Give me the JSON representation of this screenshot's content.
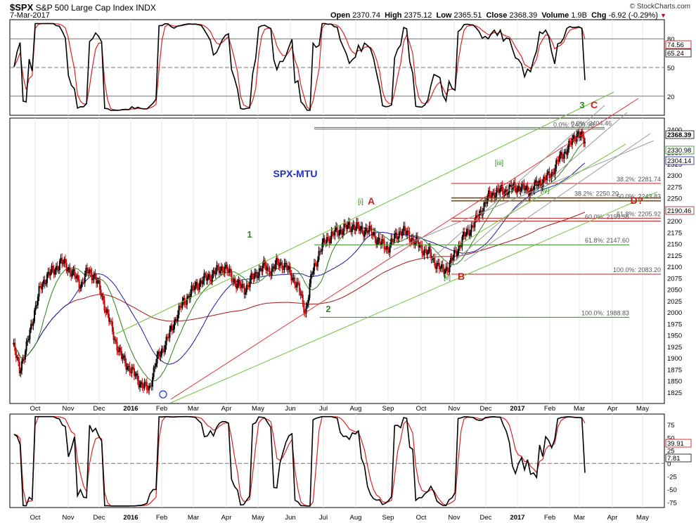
{
  "header": {
    "symbol": "$SPX",
    "name": "S&P 500 Large Cap Index",
    "exchange": "INDX",
    "date": "7-Mar-2017",
    "open_label": "Open",
    "open": "2370.74",
    "high_label": "High",
    "high": "2375.12",
    "low_label": "Low",
    "low": "2365.51",
    "close_label": "Close",
    "close": "2368.39",
    "volume_label": "Volume",
    "volume": "1.9B",
    "chg_label": "Chg",
    "chg": "-6.92 (-0.29%)",
    "credit": "© StockCharts.com"
  },
  "colors": {
    "price_up": "#000000",
    "price_down": "#cc0000",
    "ma_short": "#2e7d1e",
    "ma_mid": "#1a1aa6",
    "ma_long": "#a01818",
    "osc_fast": "#000000",
    "osc_slow": "#e02020",
    "fib_green": "#2e8b1e",
    "fib_red": "#cc1e1e",
    "fib_brown": "#7a4a10",
    "channel_green": "#6cc23a",
    "channel_red": "#e03030",
    "channel_gray": "#9a9a9a",
    "label_blue": "#1f2fcc",
    "label_red": "#d01e1e",
    "label_green": "#2a8a1a"
  },
  "chart_data": [
    {
      "panel": "top-oscillator",
      "type": "line",
      "ylim": [
        0,
        100
      ],
      "levels": [
        80,
        50,
        20
      ],
      "tick_labels": [
        "80",
        "50",
        "20"
      ],
      "series": [],
      "last_values": [
        "74.56",
        "65.24"
      ]
    },
    {
      "panel": "price",
      "type": "candlestick",
      "ylim": [
        1800,
        2425
      ],
      "y_ticks": [
        1825,
        1850,
        1875,
        1900,
        1925,
        1950,
        1975,
        2000,
        2025,
        2050,
        2075,
        2100,
        2125,
        2150,
        2175,
        2200,
        2225,
        2250,
        2275,
        2300,
        2325,
        2350,
        2400
      ],
      "x_ticks": [
        "Oct",
        "Nov",
        "Dec",
        "2016",
        "Feb",
        "Mar",
        "Apr",
        "May",
        "Jun",
        "Jul",
        "Aug",
        "Sep",
        "Oct",
        "Nov",
        "Dec",
        "2017",
        "Feb",
        "Mar",
        "Apr",
        "May"
      ],
      "series": [
        {
          "values": [
            1930,
            1875,
            1920,
            1990,
            2050,
            2080,
            2090,
            2110,
            2100,
            2080,
            2060,
            2090,
            2080,
            2040,
            1990,
            1940,
            1900,
            1880,
            1860,
            1840,
            1830,
            1890,
            1920,
            1950,
            1990,
            2020,
            2040,
            2060,
            2070,
            2080,
            2090,
            2100,
            2080,
            2060,
            2050,
            2070,
            2090,
            2100,
            2090,
            2110,
            2100,
            2080,
            2050,
            2000,
            2090,
            2130,
            2160,
            2170,
            2180,
            2185,
            2190,
            2180,
            2180,
            2170,
            2150,
            2140,
            2160,
            2180,
            2170,
            2155,
            2140,
            2130,
            2110,
            2090,
            2100,
            2130,
            2160,
            2180,
            2200,
            2230,
            2255,
            2265,
            2265,
            2270,
            2275,
            2270,
            2265,
            2280,
            2290,
            2300,
            2330,
            2350,
            2370,
            2395,
            2370
          ]
        }
      ],
      "last_values": [
        "2368.39",
        "2330.98",
        "2304.14",
        "2190.46"
      ],
      "fib_levels": [
        {
          "label": "0.0%: 2404.46",
          "value": 2404.46
        },
        {
          "label": "0.0%: 2400.98",
          "value": 2400.98
        },
        {
          "label": "38.2%: 2281.74",
          "value": 2281.74
        },
        {
          "label": "38.2%: 2250.20",
          "value": 2250.2
        },
        {
          "label": "50.0%: 2243.83",
          "value": 2243.83
        },
        {
          "label": "61.8%: 2205.92",
          "value": 2205.92
        },
        {
          "label": "60.0%: 2199.56",
          "value": 2199.56
        },
        {
          "label": "61.8%: 2147.60",
          "value": 2147.6
        },
        {
          "label": "100.0%: 2083.20",
          "value": 2083.2
        },
        {
          "label": "100.0%: 1988.83",
          "value": 1988.83
        }
      ],
      "annotations": [
        "SPX-MTU",
        "1",
        "2",
        "3",
        "A",
        "B",
        "C",
        "D?",
        "[i]",
        "[ii]",
        "[iii]",
        "[iv]"
      ]
    },
    {
      "panel": "bottom-oscillator",
      "type": "line",
      "ylim": [
        -85,
        95
      ],
      "y_ticks": [
        "75",
        "50",
        "25",
        "0",
        "-25",
        "-50",
        "-75"
      ],
      "series": [],
      "last_values": [
        "39.91",
        "7.81"
      ]
    }
  ]
}
